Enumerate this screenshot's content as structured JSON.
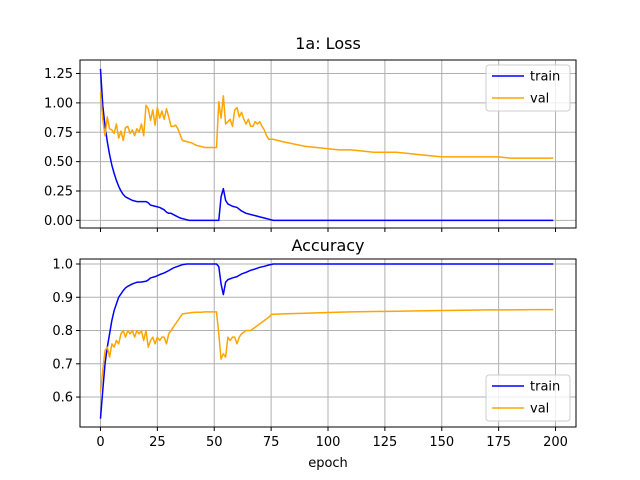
{
  "chart_data": [
    {
      "type": "line",
      "title": "1a: Loss",
      "xlabel": "",
      "ylabel": "",
      "xlim": [
        -9,
        209
      ],
      "ylim": [
        -0.065,
        1.365
      ],
      "xticks": [
        0,
        25,
        50,
        75,
        100,
        125,
        150,
        175,
        200
      ],
      "show_xtick_labels": false,
      "yticks": [
        0.0,
        0.25,
        0.5,
        0.75,
        1.0,
        1.25
      ],
      "ytick_labels": [
        "0.00",
        "0.25",
        "0.50",
        "0.75",
        "1.00",
        "1.25"
      ],
      "grid": true,
      "legend": "top-right",
      "series": [
        {
          "name": "train",
          "color": "#0000ff",
          "points": [
            [
              0,
              1.29
            ],
            [
              1,
              0.98
            ],
            [
              2,
              0.8
            ],
            [
              3,
              0.67
            ],
            [
              4,
              0.56
            ],
            [
              5,
              0.47
            ],
            [
              6,
              0.4
            ],
            [
              7,
              0.34
            ],
            [
              8,
              0.29
            ],
            [
              9,
              0.25
            ],
            [
              10,
              0.22
            ],
            [
              11,
              0.2
            ],
            [
              12,
              0.19
            ],
            [
              14,
              0.17
            ],
            [
              16,
              0.16
            ],
            [
              18,
              0.16
            ],
            [
              20,
              0.16
            ],
            [
              21,
              0.15
            ],
            [
              22,
              0.13
            ],
            [
              24,
              0.12
            ],
            [
              26,
              0.11
            ],
            [
              28,
              0.09
            ],
            [
              29,
              0.07
            ],
            [
              30,
              0.06
            ],
            [
              31,
              0.06
            ],
            [
              33,
              0.04
            ],
            [
              35,
              0.02
            ],
            [
              37,
              0.01
            ],
            [
              39,
              0.0
            ],
            [
              45,
              0.0
            ],
            [
              51,
              0.0
            ],
            [
              52,
              0.0
            ],
            [
              53,
              0.2
            ],
            [
              54,
              0.27
            ],
            [
              55,
              0.17
            ],
            [
              56,
              0.14
            ],
            [
              58,
              0.12
            ],
            [
              60,
              0.11
            ],
            [
              62,
              0.08
            ],
            [
              64,
              0.06
            ],
            [
              66,
              0.05
            ],
            [
              68,
              0.04
            ],
            [
              70,
              0.03
            ],
            [
              72,
              0.02
            ],
            [
              74,
              0.01
            ],
            [
              76,
              0.0
            ],
            [
              100,
              0.0
            ],
            [
              150,
              0.0
            ],
            [
              199,
              0.0
            ]
          ]
        },
        {
          "name": "val",
          "color": "#ffa500",
          "points": [
            [
              0,
              1.09
            ],
            [
              1,
              0.86
            ],
            [
              2,
              0.72
            ],
            [
              3,
              0.88
            ],
            [
              4,
              0.78
            ],
            [
              5,
              0.77
            ],
            [
              6,
              0.74
            ],
            [
              7,
              0.82
            ],
            [
              8,
              0.7
            ],
            [
              9,
              0.76
            ],
            [
              10,
              0.68
            ],
            [
              11,
              0.79
            ],
            [
              12,
              0.8
            ],
            [
              13,
              0.74
            ],
            [
              14,
              0.77
            ],
            [
              15,
              0.72
            ],
            [
              16,
              0.78
            ],
            [
              17,
              0.75
            ],
            [
              18,
              0.82
            ],
            [
              19,
              0.72
            ],
            [
              20,
              0.98
            ],
            [
              21,
              0.95
            ],
            [
              22,
              0.85
            ],
            [
              23,
              0.94
            ],
            [
              24,
              0.81
            ],
            [
              25,
              0.96
            ],
            [
              26,
              0.87
            ],
            [
              27,
              0.93
            ],
            [
              28,
              0.86
            ],
            [
              29,
              0.95
            ],
            [
              30,
              0.88
            ],
            [
              31,
              0.8
            ],
            [
              32,
              0.8
            ],
            [
              33,
              0.81
            ],
            [
              34,
              0.78
            ],
            [
              35,
              0.73
            ],
            [
              36,
              0.68
            ],
            [
              38,
              0.67
            ],
            [
              40,
              0.66
            ],
            [
              42,
              0.64
            ],
            [
              44,
              0.63
            ],
            [
              46,
              0.62
            ],
            [
              48,
              0.62
            ],
            [
              50,
              0.62
            ],
            [
              51,
              0.62
            ],
            [
              52,
              1.01
            ],
            [
              53,
              0.87
            ],
            [
              54,
              1.06
            ],
            [
              55,
              0.82
            ],
            [
              56,
              0.84
            ],
            [
              57,
              0.86
            ],
            [
              58,
              0.8
            ],
            [
              59,
              0.94
            ],
            [
              60,
              0.96
            ],
            [
              61,
              0.88
            ],
            [
              62,
              0.92
            ],
            [
              63,
              0.86
            ],
            [
              64,
              0.82
            ],
            [
              65,
              0.86
            ],
            [
              66,
              0.8
            ],
            [
              67,
              0.8
            ],
            [
              68,
              0.84
            ],
            [
              69,
              0.82
            ],
            [
              70,
              0.84
            ],
            [
              71,
              0.8
            ],
            [
              72,
              0.77
            ],
            [
              73,
              0.72
            ],
            [
              74,
              0.69
            ],
            [
              76,
              0.69
            ],
            [
              80,
              0.67
            ],
            [
              85,
              0.65
            ],
            [
              90,
              0.63
            ],
            [
              95,
              0.62
            ],
            [
              100,
              0.61
            ],
            [
              105,
              0.6
            ],
            [
              110,
              0.6
            ],
            [
              115,
              0.59
            ],
            [
              120,
              0.58
            ],
            [
              125,
              0.58
            ],
            [
              130,
              0.58
            ],
            [
              135,
              0.57
            ],
            [
              140,
              0.56
            ],
            [
              145,
              0.55
            ],
            [
              150,
              0.54
            ],
            [
              155,
              0.54
            ],
            [
              160,
              0.54
            ],
            [
              165,
              0.54
            ],
            [
              170,
              0.54
            ],
            [
              175,
              0.54
            ],
            [
              180,
              0.53
            ],
            [
              185,
              0.53
            ],
            [
              190,
              0.53
            ],
            [
              195,
              0.53
            ],
            [
              199,
              0.53
            ]
          ]
        }
      ]
    },
    {
      "type": "line",
      "title": "Accuracy",
      "xlabel": "epoch",
      "ylabel": "",
      "xlim": [
        -9,
        209
      ],
      "ylim": [
        0.51,
        1.015
      ],
      "xticks": [
        0,
        25,
        50,
        75,
        100,
        125,
        150,
        175,
        200
      ],
      "xtick_labels": [
        "0",
        "25",
        "50",
        "75",
        "100",
        "125",
        "150",
        "175",
        "200"
      ],
      "show_xtick_labels": true,
      "yticks": [
        0.6,
        0.7,
        0.8,
        0.9,
        1.0
      ],
      "ytick_labels": [
        "0.6",
        "0.7",
        "0.8",
        "0.9",
        "1.0"
      ],
      "grid": true,
      "legend": "bottom-right",
      "series": [
        {
          "name": "train",
          "color": "#0000ff",
          "points": [
            [
              0,
              0.535
            ],
            [
              1,
              0.62
            ],
            [
              2,
              0.7
            ],
            [
              3,
              0.75
            ],
            [
              4,
              0.79
            ],
            [
              5,
              0.83
            ],
            [
              6,
              0.86
            ],
            [
              7,
              0.88
            ],
            [
              8,
              0.9
            ],
            [
              9,
              0.91
            ],
            [
              10,
              0.92
            ],
            [
              11,
              0.928
            ],
            [
              12,
              0.933
            ],
            [
              14,
              0.94
            ],
            [
              16,
              0.945
            ],
            [
              18,
              0.946
            ],
            [
              20,
              0.948
            ],
            [
              21,
              0.952
            ],
            [
              22,
              0.958
            ],
            [
              24,
              0.962
            ],
            [
              26,
              0.968
            ],
            [
              28,
              0.973
            ],
            [
              30,
              0.98
            ],
            [
              32,
              0.988
            ],
            [
              34,
              0.993
            ],
            [
              36,
              0.998
            ],
            [
              38,
              1.0
            ],
            [
              45,
              1.0
            ],
            [
              51,
              1.0
            ],
            [
              52,
              0.992
            ],
            [
              53,
              0.94
            ],
            [
              54,
              0.908
            ],
            [
              55,
              0.945
            ],
            [
              56,
              0.953
            ],
            [
              58,
              0.958
            ],
            [
              60,
              0.962
            ],
            [
              62,
              0.97
            ],
            [
              64,
              0.975
            ],
            [
              66,
              0.981
            ],
            [
              68,
              0.985
            ],
            [
              70,
              0.99
            ],
            [
              72,
              0.993
            ],
            [
              74,
              0.997
            ],
            [
              76,
              1.0
            ],
            [
              100,
              1.0
            ],
            [
              150,
              1.0
            ],
            [
              199,
              1.0
            ]
          ]
        },
        {
          "name": "val",
          "color": "#ffa500",
          "points": [
            [
              0,
              0.615
            ],
            [
              1,
              0.68
            ],
            [
              2,
              0.74
            ],
            [
              3,
              0.75
            ],
            [
              4,
              0.72
            ],
            [
              5,
              0.76
            ],
            [
              6,
              0.75
            ],
            [
              7,
              0.77
            ],
            [
              8,
              0.76
            ],
            [
              9,
              0.79
            ],
            [
              10,
              0.8
            ],
            [
              11,
              0.78
            ],
            [
              12,
              0.8
            ],
            [
              13,
              0.79
            ],
            [
              14,
              0.8
            ],
            [
              15,
              0.78
            ],
            [
              16,
              0.8
            ],
            [
              17,
              0.79
            ],
            [
              18,
              0.8
            ],
            [
              19,
              0.77
            ],
            [
              20,
              0.8
            ],
            [
              21,
              0.75
            ],
            [
              22,
              0.77
            ],
            [
              23,
              0.78
            ],
            [
              24,
              0.76
            ],
            [
              25,
              0.78
            ],
            [
              26,
              0.77
            ],
            [
              27,
              0.78
            ],
            [
              28,
              0.78
            ],
            [
              29,
              0.76
            ],
            [
              30,
              0.79
            ],
            [
              31,
              0.8
            ],
            [
              32,
              0.81
            ],
            [
              33,
              0.82
            ],
            [
              34,
              0.83
            ],
            [
              35,
              0.84
            ],
            [
              36,
              0.85
            ],
            [
              38,
              0.852
            ],
            [
              40,
              0.854
            ],
            [
              42,
              0.855
            ],
            [
              44,
              0.855
            ],
            [
              46,
              0.856
            ],
            [
              48,
              0.856
            ],
            [
              50,
              0.856
            ],
            [
              51,
              0.856
            ],
            [
              52,
              0.79
            ],
            [
              53,
              0.714
            ],
            [
              54,
              0.73
            ],
            [
              55,
              0.72
            ],
            [
              56,
              0.78
            ],
            [
              57,
              0.77
            ],
            [
              58,
              0.78
            ],
            [
              59,
              0.78
            ],
            [
              60,
              0.76
            ],
            [
              61,
              0.78
            ],
            [
              62,
              0.79
            ],
            [
              64,
              0.8
            ],
            [
              66,
              0.8
            ],
            [
              68,
              0.81
            ],
            [
              70,
              0.82
            ],
            [
              72,
              0.83
            ],
            [
              74,
              0.84
            ],
            [
              75,
              0.848
            ],
            [
              76,
              0.849
            ],
            [
              80,
              0.85
            ],
            [
              90,
              0.852
            ],
            [
              100,
              0.854
            ],
            [
              110,
              0.856
            ],
            [
              120,
              0.857
            ],
            [
              130,
              0.858
            ],
            [
              140,
              0.859
            ],
            [
              150,
              0.86
            ],
            [
              160,
              0.861
            ],
            [
              170,
              0.862
            ],
            [
              180,
              0.862
            ],
            [
              190,
              0.863
            ],
            [
              199,
              0.863
            ]
          ]
        }
      ]
    }
  ]
}
